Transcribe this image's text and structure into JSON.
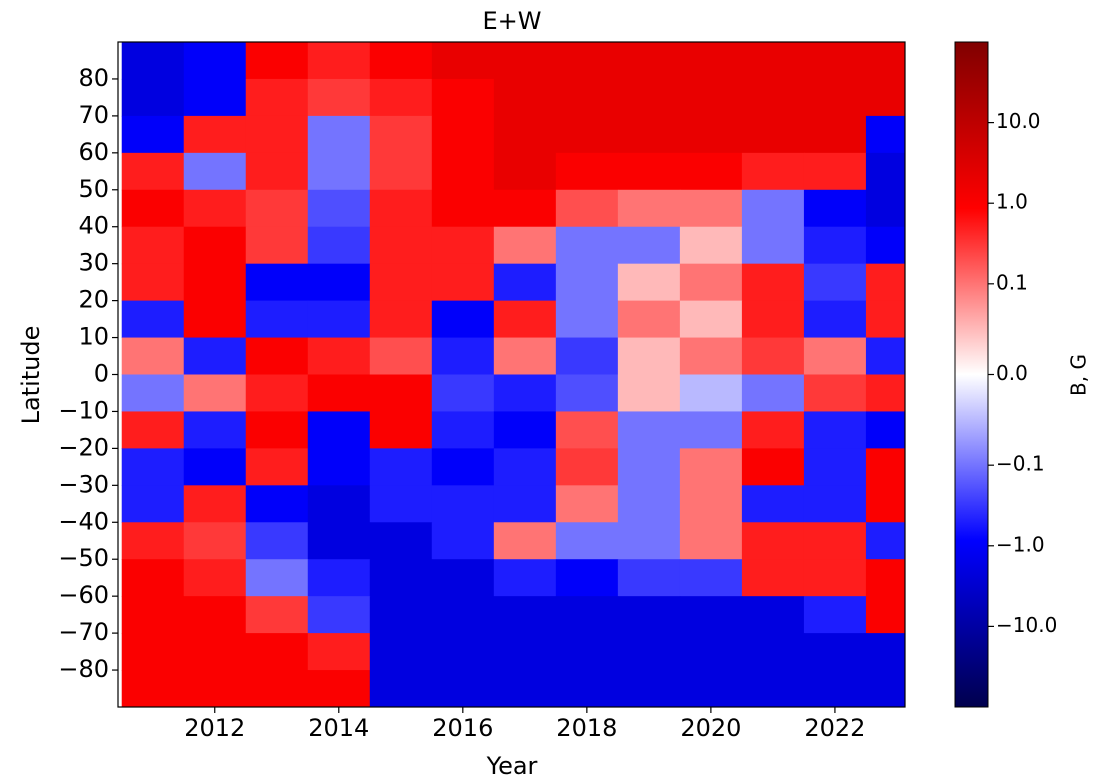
{
  "chart_data": {
    "type": "heatmap",
    "title": "E+W",
    "xlabel": "Year",
    "ylabel": "Latitude",
    "x": [
      2011,
      2012,
      2013,
      2014,
      2015,
      2016,
      2017,
      2018,
      2019,
      2020,
      2021,
      2022,
      2023
    ],
    "y": [
      85,
      75,
      65,
      55,
      45,
      35,
      25,
      15,
      5,
      -5,
      -15,
      -25,
      -35,
      -45,
      -55,
      -65,
      -75,
      -85
    ],
    "z": [
      [
        -2,
        -1,
        1,
        0.5,
        1,
        2,
        2,
        2,
        2,
        2,
        2,
        2,
        2
      ],
      [
        -2,
        -1,
        0.5,
        0.3,
        0.5,
        1,
        2,
        2,
        2,
        2,
        2,
        2,
        2
      ],
      [
        -1,
        0.5,
        0.5,
        -0.1,
        0.3,
        1,
        2,
        2,
        2,
        2,
        2,
        2,
        -1
      ],
      [
        0.5,
        -0.1,
        0.5,
        -0.1,
        0.3,
        1,
        2,
        1,
        1,
        1,
        0.5,
        0.5,
        -2
      ],
      [
        1,
        0.5,
        0.3,
        -0.2,
        0.5,
        1,
        1,
        0.2,
        0.1,
        0.1,
        -0.1,
        -1,
        -2
      ],
      [
        0.5,
        1,
        0.3,
        -0.3,
        0.5,
        0.5,
        0.1,
        -0.1,
        -0.1,
        0.05,
        -0.1,
        -0.5,
        -1
      ],
      [
        0.5,
        1,
        -1,
        -1,
        0.5,
        0.5,
        -0.5,
        -0.1,
        0.05,
        0.1,
        0.5,
        -0.3,
        0.5
      ],
      [
        -0.5,
        1,
        -0.5,
        -0.5,
        0.5,
        -1,
        0.5,
        -0.1,
        0.1,
        0.05,
        0.5,
        -0.5,
        0.5
      ],
      [
        0.1,
        -0.5,
        1,
        0.5,
        0.2,
        -0.5,
        0.1,
        -0.3,
        0.05,
        0.1,
        0.3,
        0.1,
        -0.5
      ],
      [
        -0.1,
        0.1,
        0.5,
        1,
        1,
        -0.3,
        -0.5,
        -0.2,
        0.05,
        -0.05,
        -0.1,
        0.3,
        0.5
      ],
      [
        0.5,
        -0.5,
        1,
        -1,
        1,
        -0.5,
        -1,
        0.2,
        -0.1,
        -0.1,
        0.5,
        -0.5,
        -1
      ],
      [
        -0.5,
        -1,
        0.5,
        -1,
        -0.5,
        -1,
        -0.5,
        0.3,
        -0.1,
        0.1,
        1,
        -0.5,
        1
      ],
      [
        -0.5,
        0.5,
        -1,
        -2,
        -0.5,
        -0.5,
        -0.5,
        0.1,
        -0.1,
        0.1,
        -0.5,
        -0.5,
        1
      ],
      [
        0.5,
        0.3,
        -0.3,
        -2,
        -2,
        -0.5,
        0.1,
        -0.1,
        -0.1,
        0.1,
        0.5,
        0.5,
        -0.5
      ],
      [
        1,
        0.5,
        -0.1,
        -0.5,
        -2,
        -2,
        -0.5,
        -1,
        -0.3,
        -0.3,
        0.5,
        0.5,
        1
      ],
      [
        1,
        1,
        0.3,
        -0.3,
        -2,
        -2,
        -2,
        -2,
        -2,
        -2,
        -2,
        -0.5,
        1
      ],
      [
        1,
        1,
        1,
        0.5,
        -2,
        -2,
        -2,
        -2,
        -2,
        -2,
        -2,
        -2,
        -2
      ],
      [
        1,
        1,
        1,
        1,
        -2,
        -2,
        -2,
        -2,
        -2,
        -2,
        -2,
        -2,
        -2
      ]
    ],
    "xlim": [
      2010.44,
      2023.13
    ],
    "ylim": [
      -90,
      90
    ],
    "xticks": [
      2012,
      2014,
      2016,
      2018,
      2020,
      2022
    ],
    "yticks": [
      {
        "value": -80,
        "label": "−80"
      },
      {
        "value": -70,
        "label": "−70"
      },
      {
        "value": -60,
        "label": "−60"
      },
      {
        "value": -50,
        "label": "−50"
      },
      {
        "value": -40,
        "label": "−40"
      },
      {
        "value": -30,
        "label": "−30"
      },
      {
        "value": -20,
        "label": "−20"
      },
      {
        "value": -10,
        "label": "−10"
      },
      0,
      10,
      20,
      30,
      40,
      50,
      60,
      70,
      80
    ],
    "colorbar": {
      "label": "B, G",
      "scale": "symlog",
      "linthresh": 0.1,
      "cmap": "seismic",
      "zlim": [
        -100,
        100
      ],
      "ticks": [
        {
          "value": 10,
          "label": "10.0"
        },
        {
          "value": 1,
          "label": "1.0"
        },
        {
          "value": 0.1,
          "label": "0.1"
        },
        {
          "value": 0,
          "label": "0.0"
        },
        {
          "value": -0.1,
          "label": "−0.1"
        },
        {
          "value": -1,
          "label": "−1.0"
        },
        {
          "value": -10,
          "label": "−10.0"
        }
      ]
    }
  }
}
